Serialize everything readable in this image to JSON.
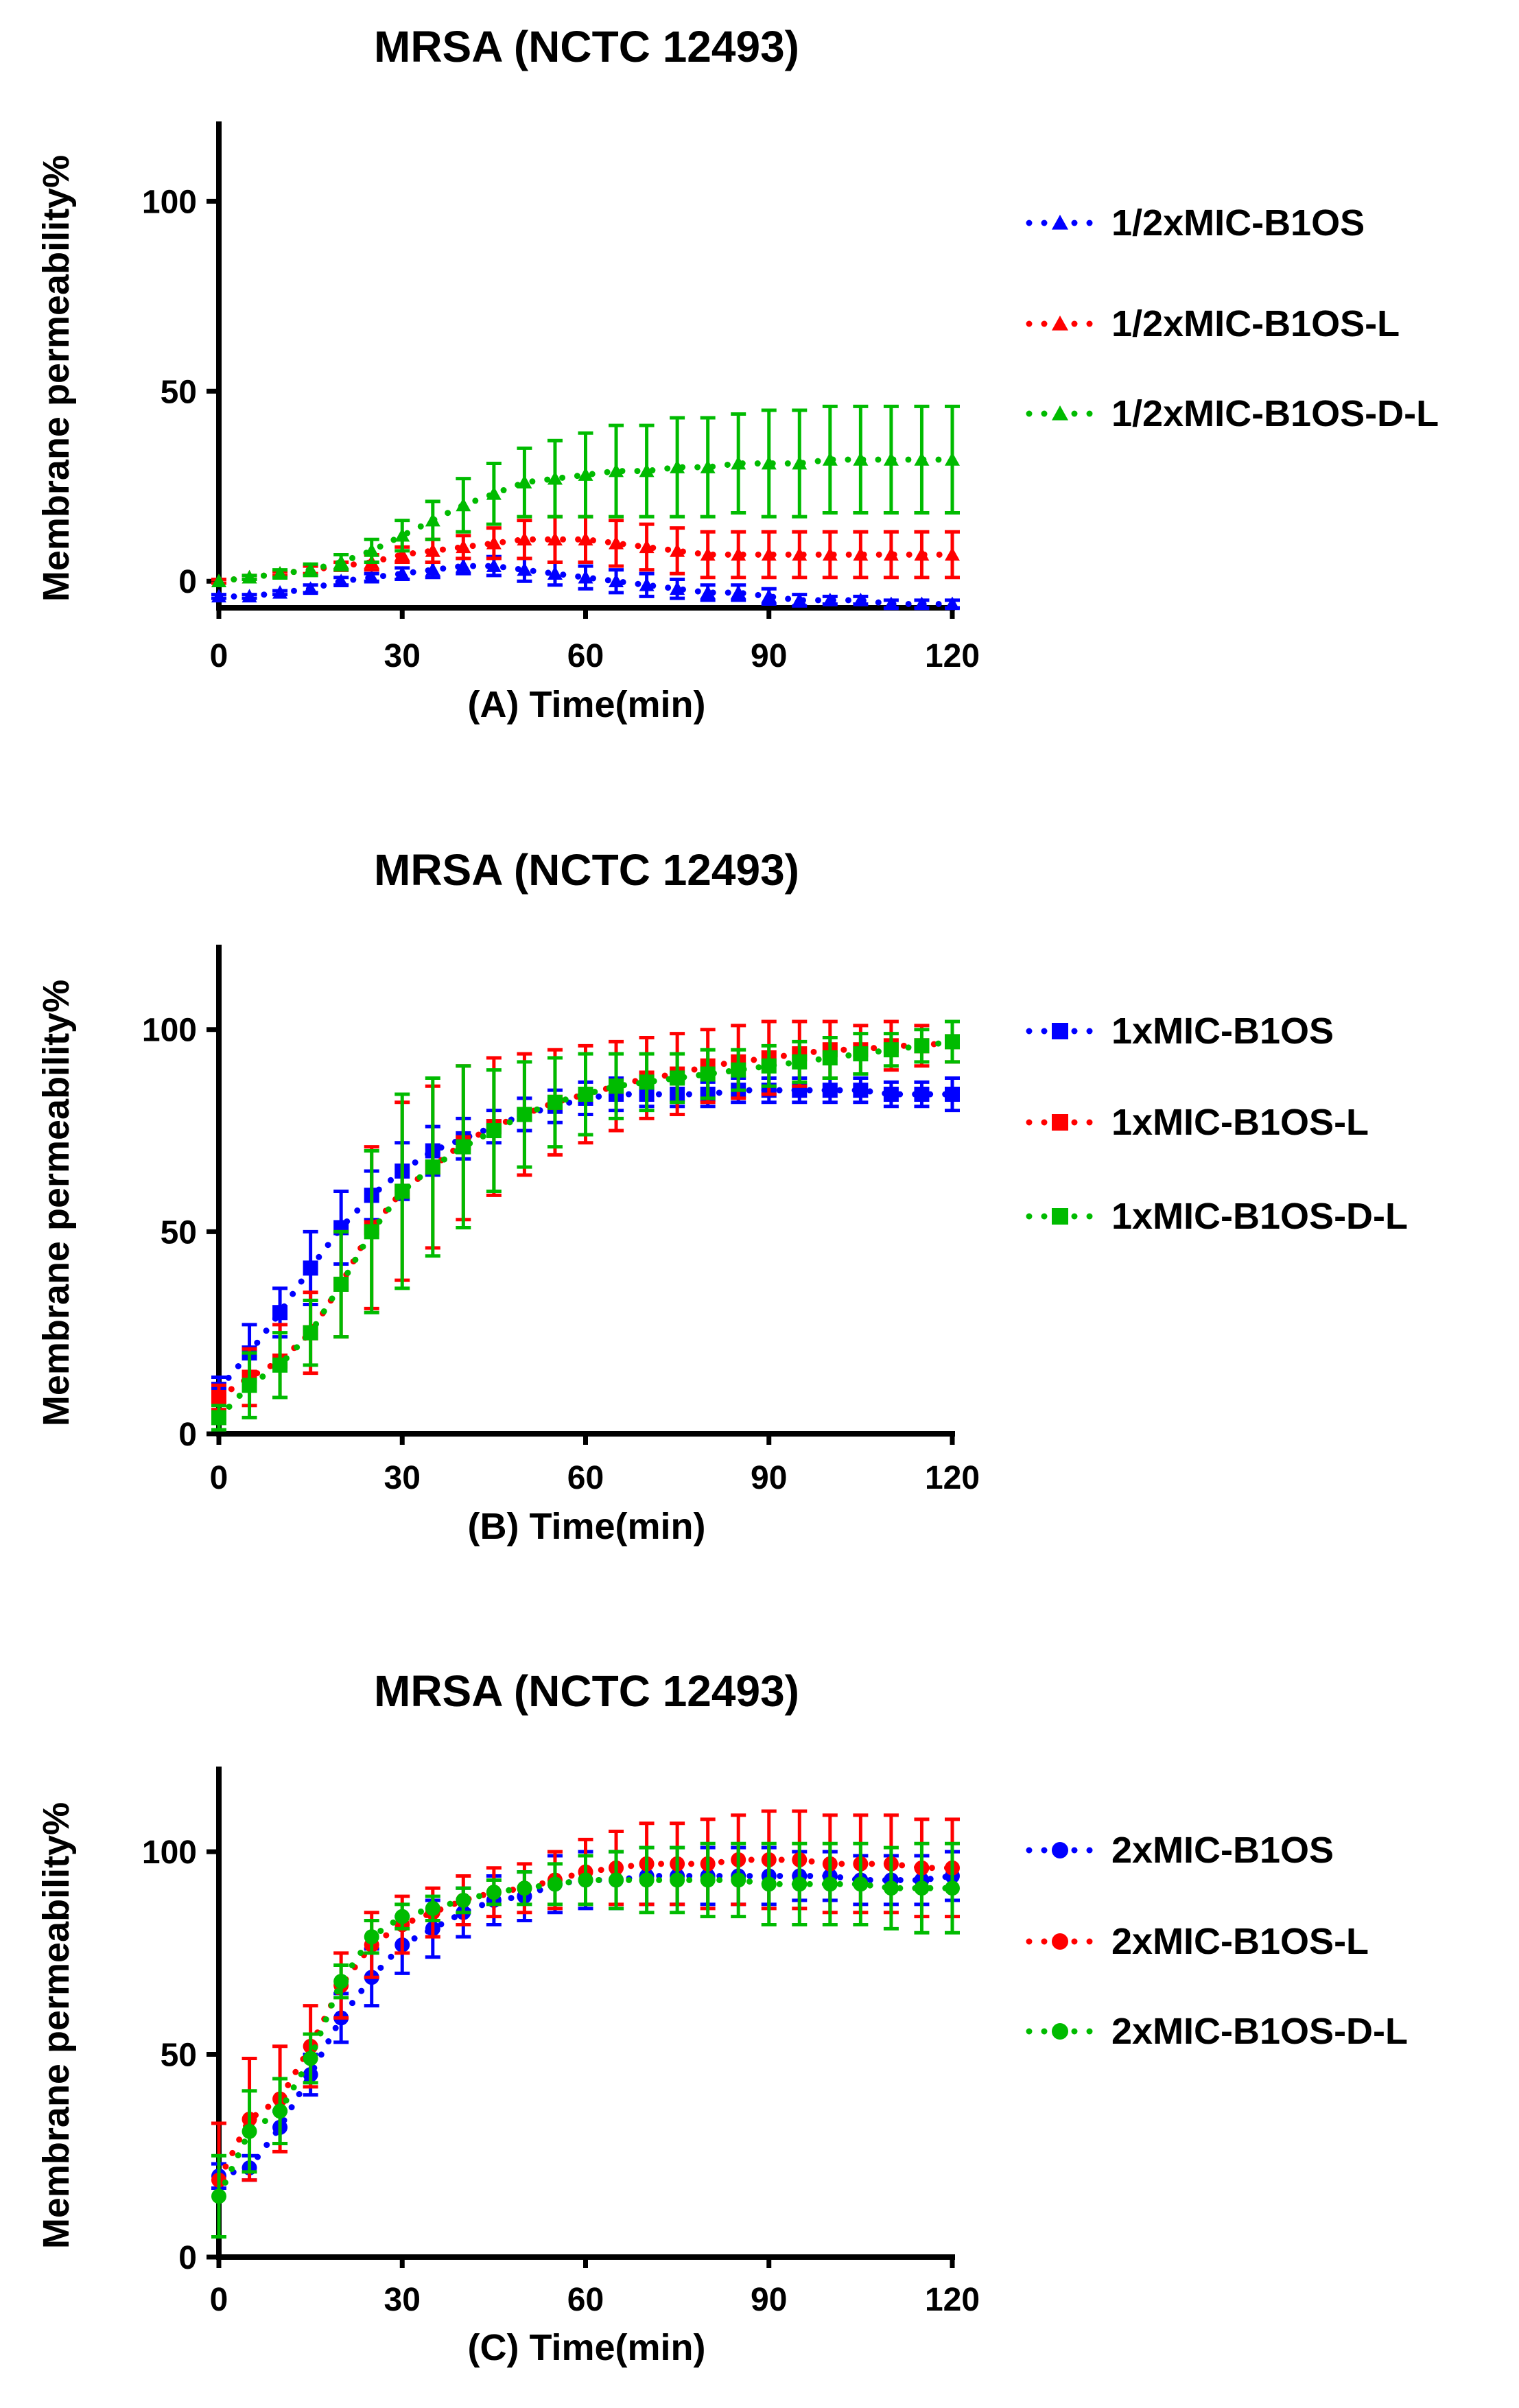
{
  "colors": {
    "blue": "#0000ff",
    "red": "#ff0000",
    "green": "#00bb00",
    "axis": "#000000"
  },
  "chart_data": [
    {
      "type": "line",
      "title": "MRSA (NCTC 12493)",
      "xlabel": "(A) Time(min)",
      "ylabel": "Membrane permeability%",
      "xlim": [
        0,
        120
      ],
      "ylim": [
        -7,
        121
      ],
      "xticks": [
        0,
        30,
        60,
        90,
        120
      ],
      "yticks": [
        0,
        50,
        100
      ],
      "marker": "triangle",
      "legend_position": "right",
      "x": [
        0,
        5,
        10,
        15,
        20,
        25,
        30,
        35,
        40,
        45,
        50,
        55,
        60,
        65,
        70,
        75,
        80,
        85,
        90,
        95,
        100,
        105,
        110,
        115,
        120
      ],
      "series": [
        {
          "name": "1/2xMIC-B1OS",
          "color": "blue",
          "values": [
            -4,
            -4,
            -3,
            -2,
            0,
            1,
            2,
            3,
            4,
            4,
            3,
            2,
            1,
            0,
            -1,
            -2,
            -3,
            -3,
            -4,
            -5,
            -5,
            -5,
            -6,
            -6,
            -6
          ],
          "errors": [
            0.5,
            0.5,
            0.5,
            1,
            1,
            1,
            1.5,
            2,
            2,
            2.5,
            3,
            3,
            3,
            3,
            3,
            2.5,
            2,
            2,
            2,
            1.5,
            1,
            1,
            1,
            1,
            1
          ]
        },
        {
          "name": "1/2xMIC-B1OS-L",
          "color": "red",
          "values": [
            0,
            1,
            2,
            3,
            4,
            5,
            7,
            8,
            9,
            10,
            11,
            11,
            11,
            10,
            9,
            8,
            7,
            7,
            7,
            7,
            7,
            7,
            7,
            7,
            7
          ],
          "errors": [
            0.5,
            0.5,
            0.5,
            1,
            1,
            2,
            2,
            3,
            3,
            4,
            5,
            6,
            6,
            6,
            6,
            6,
            6,
            6,
            6,
            6,
            6,
            6,
            6,
            6,
            6
          ]
        },
        {
          "name": "1/2xMIC-B1OS-D-L",
          "color": "green",
          "values": [
            0,
            1,
            2,
            3,
            5,
            8,
            12,
            16,
            20,
            23,
            26,
            27,
            28,
            29,
            29,
            30,
            30,
            31,
            31,
            31,
            32,
            32,
            32,
            32,
            32
          ],
          "errors": [
            0,
            0.5,
            1,
            1.5,
            2,
            3,
            4,
            5,
            7,
            8,
            9,
            10,
            11,
            12,
            12,
            13,
            13,
            13,
            14,
            14,
            14,
            14,
            14,
            14,
            14
          ]
        }
      ]
    },
    {
      "type": "line",
      "title": "MRSA (NCTC 12493)",
      "xlabel": "(B) Time(min)",
      "ylabel": "Membrane permeability%",
      "xlim": [
        0,
        120
      ],
      "ylim": [
        0,
        121
      ],
      "xticks": [
        0,
        30,
        60,
        90,
        120
      ],
      "yticks": [
        0,
        50,
        100
      ],
      "marker": "square",
      "legend_position": "right",
      "x": [
        0,
        5,
        10,
        15,
        20,
        25,
        30,
        35,
        40,
        45,
        50,
        55,
        60,
        65,
        70,
        75,
        80,
        85,
        90,
        95,
        100,
        105,
        110,
        115,
        120
      ],
      "series": [
        {
          "name": "1xMIC-B1OS",
          "color": "blue",
          "values": [
            11,
            20,
            30,
            41,
            51,
            59,
            65,
            70,
            73,
            76,
            79,
            81,
            83,
            84,
            84,
            84,
            84,
            85,
            85,
            85,
            85,
            85,
            84,
            84,
            84
          ],
          "errors": [
            3,
            7,
            6,
            9,
            9,
            6,
            7,
            6,
            5,
            4,
            4,
            4,
            4,
            4,
            3,
            3,
            3,
            3,
            3,
            3,
            3,
            3,
            3,
            3,
            4
          ]
        },
        {
          "name": "1xMIC-B1OS-L",
          "color": "red",
          "values": [
            9,
            14,
            18,
            25,
            37,
            51,
            60,
            66,
            72,
            76,
            79,
            82,
            84,
            86,
            88,
            89,
            91,
            92,
            93,
            94,
            95,
            95,
            96,
            96,
            97
          ],
          "errors": [
            3,
            7,
            9,
            10,
            13,
            20,
            22,
            20,
            19,
            17,
            15,
            13,
            12,
            11,
            10,
            10,
            9,
            9,
            9,
            8,
            7,
            6,
            6,
            5,
            5
          ]
        },
        {
          "name": "1xMIC-B1OS-D-L",
          "color": "green",
          "values": [
            4,
            12,
            17,
            25,
            37,
            50,
            60,
            66,
            71,
            75,
            79,
            82,
            84,
            86,
            87,
            88,
            89,
            90,
            91,
            92,
            93,
            94,
            95,
            96,
            97
          ],
          "errors": [
            3,
            8,
            8,
            8,
            13,
            20,
            24,
            22,
            20,
            15,
            13,
            11,
            10,
            8,
            7,
            6,
            6,
            5,
            5,
            5,
            5,
            5,
            4,
            4,
            5
          ]
        }
      ]
    },
    {
      "type": "line",
      "title": "MRSA (NCTC 12493)",
      "xlabel": "(C) Time(min)",
      "ylabel": "Membrane permeability%",
      "xlim": [
        0,
        120
      ],
      "ylim": [
        0,
        121
      ],
      "xticks": [
        0,
        30,
        60,
        90,
        120
      ],
      "yticks": [
        0,
        50,
        100
      ],
      "marker": "circle",
      "legend_position": "right",
      "x": [
        0,
        5,
        10,
        15,
        20,
        25,
        30,
        35,
        40,
        45,
        50,
        55,
        60,
        65,
        70,
        75,
        80,
        85,
        90,
        95,
        100,
        105,
        110,
        115,
        120
      ],
      "series": [
        {
          "name": "2xMIC-B1OS",
          "color": "blue",
          "values": [
            20,
            22,
            32,
            45,
            59,
            69,
            77,
            81,
            85,
            88,
            89,
            92,
            93,
            93,
            94,
            94,
            94,
            94,
            94,
            94,
            94,
            93,
            93,
            93,
            94
          ],
          "errors": [
            3,
            3,
            4,
            5,
            6,
            7,
            7,
            7,
            6,
            6,
            6,
            7,
            7,
            7,
            7,
            7,
            7,
            7,
            7,
            6,
            6,
            6,
            6,
            6,
            6
          ]
        },
        {
          "name": "2xMIC-B1OS-L",
          "color": "red",
          "values": [
            19,
            34,
            39,
            52,
            67,
            77,
            82,
            85,
            88,
            90,
            91,
            93,
            95,
            96,
            97,
            97,
            97,
            98,
            98,
            98,
            97,
            97,
            97,
            96,
            96
          ],
          "errors": [
            14,
            15,
            13,
            10,
            8,
            8,
            7,
            6,
            6,
            6,
            6,
            7,
            8,
            9,
            10,
            10,
            11,
            11,
            12,
            12,
            12,
            12,
            12,
            12,
            12
          ]
        },
        {
          "name": "2xMIC-B1OS-D-L",
          "color": "green",
          "values": [
            15,
            31,
            36,
            49,
            68,
            79,
            84,
            86,
            88,
            90,
            91,
            92,
            93,
            93,
            93,
            93,
            93,
            93,
            92,
            92,
            92,
            92,
            91,
            91,
            91
          ],
          "errors": [
            10,
            10,
            8,
            6,
            4,
            4,
            3,
            3,
            3,
            3,
            4,
            5,
            6,
            7,
            8,
            8,
            9,
            9,
            10,
            10,
            10,
            10,
            10,
            11,
            11
          ]
        }
      ]
    }
  ]
}
